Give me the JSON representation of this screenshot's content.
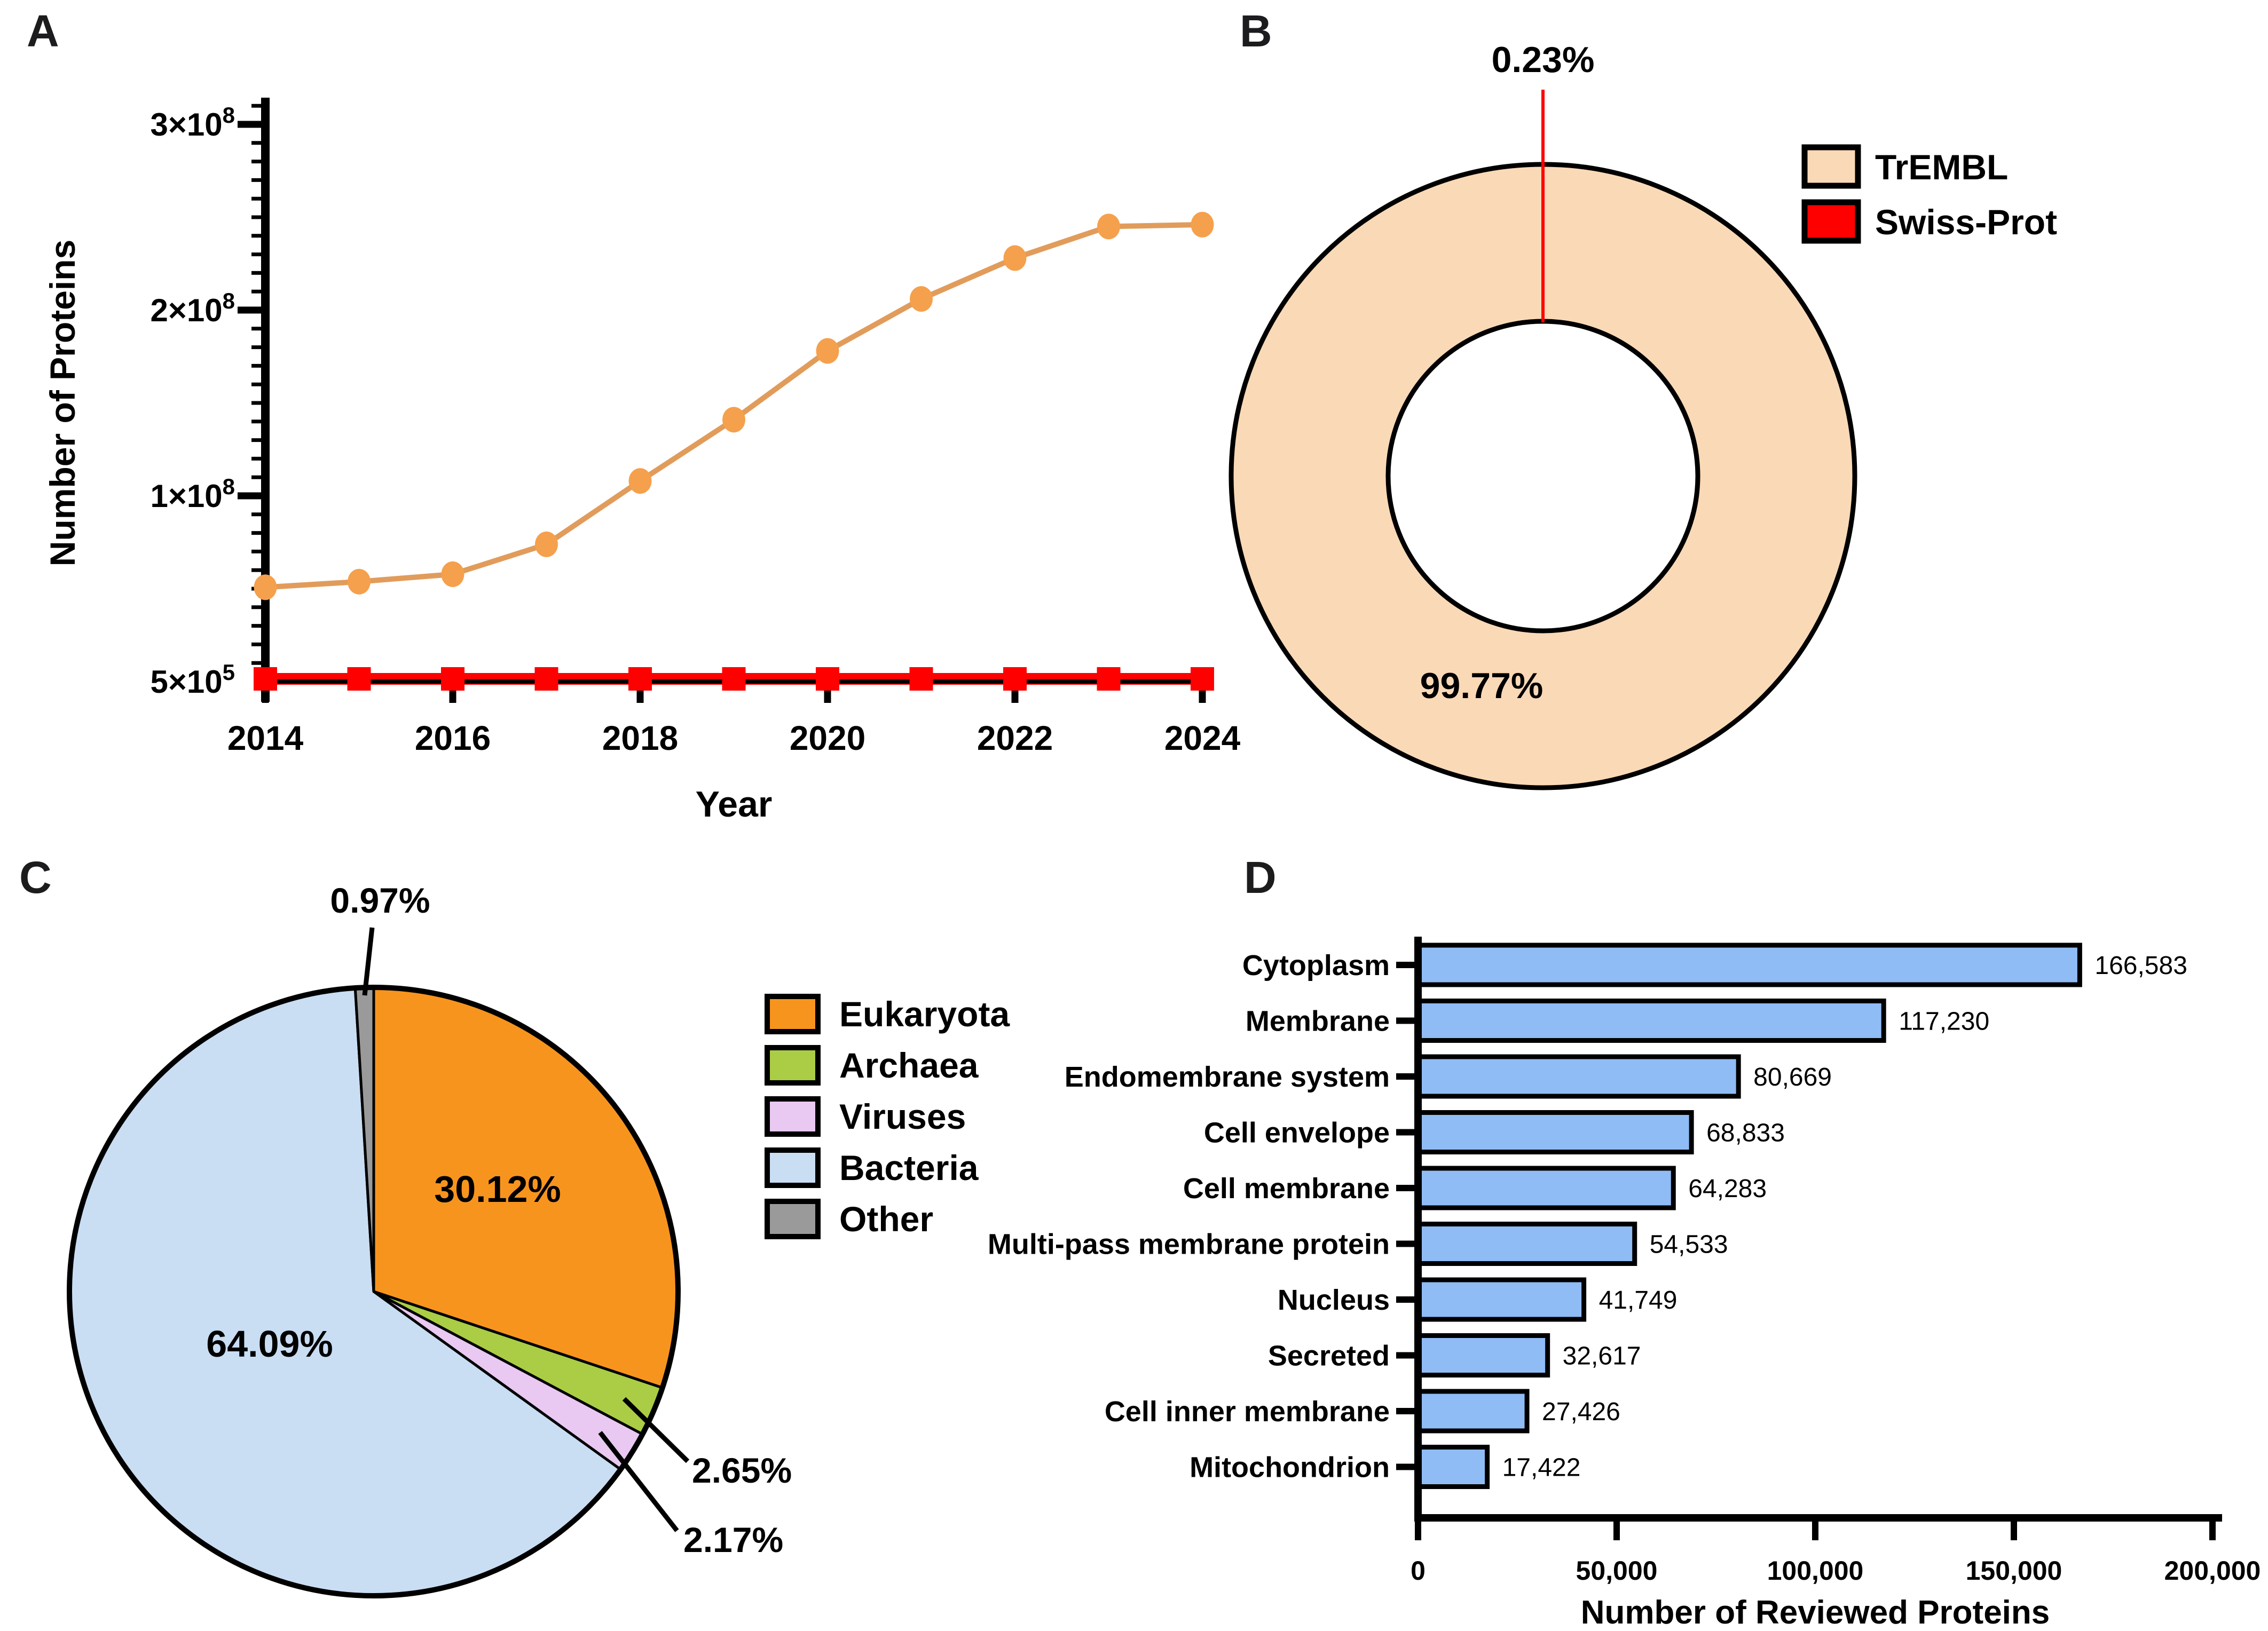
{
  "figure": {
    "panel_letters": [
      "A",
      "B",
      "C",
      "D"
    ]
  },
  "colors": {
    "trembl_line": "#E19C5B",
    "trembl_marker": "#F5A04C",
    "swissprot_marker": "#FF0000",
    "swissprot_line": "#FF0000",
    "axis": "#000000",
    "donut_fill": "#FAD9B7",
    "donut_red": "#FF0000",
    "bar_fill": "#8FBCF5",
    "text": "#000000"
  },
  "chart_data": [
    {
      "id": "A",
      "type": "line",
      "xlabel": "Year",
      "ylabel": "Number of Proteins",
      "x": [
        2014,
        2015,
        2016,
        2017,
        2018,
        2019,
        2020,
        2021,
        2022,
        2023,
        2024
      ],
      "xticks_labeled": [
        2014,
        2016,
        2018,
        2020,
        2022,
        2024
      ],
      "yticks": [
        {
          "value": 500000,
          "base": "5×10",
          "exp": "5"
        },
        {
          "value": 100000000,
          "base": "1×10",
          "exp": "8"
        },
        {
          "value": 200000000,
          "base": "2×10",
          "exp": "8"
        },
        {
          "value": 300000000,
          "base": "3×10",
          "exp": "8"
        }
      ],
      "series": [
        {
          "name": "TrEMBL",
          "marker": "circle",
          "values": [
            51000000,
            54000000,
            58000000,
            74000000,
            108000000,
            141000000,
            178000000,
            206000000,
            228000000,
            245000000,
            246000000
          ]
        },
        {
          "name": "Swiss-Prot",
          "marker": "square",
          "values": [
            550000,
            550000,
            550000,
            550000,
            550000,
            550000,
            550000,
            550000,
            550000,
            550000,
            550000
          ]
        }
      ]
    },
    {
      "id": "B",
      "type": "pie",
      "donut": true,
      "slices": [
        {
          "label": "TrEMBL",
          "pct": 99.77,
          "pct_label": "99.77%",
          "color": "#FAD9B7"
        },
        {
          "label": "Swiss-Prot",
          "pct": 0.23,
          "pct_label": "0.23%",
          "color": "#FF0000"
        }
      ],
      "legend": [
        "TrEMBL",
        "Swiss-Prot"
      ],
      "legend_position": "right"
    },
    {
      "id": "C",
      "type": "pie",
      "donut": false,
      "slices": [
        {
          "label": "Eukaryota",
          "pct": 30.12,
          "pct_label": "30.12%",
          "color": "#F7941E"
        },
        {
          "label": "Archaea",
          "pct": 2.65,
          "pct_label": "2.65%",
          "color": "#AACD45"
        },
        {
          "label": "Viruses",
          "pct": 2.17,
          "pct_label": "2.17%",
          "color": "#E9C8F1"
        },
        {
          "label": "Bacteria",
          "pct": 64.09,
          "pct_label": "64.09%",
          "color": "#C9DDF3"
        },
        {
          "label": "Other",
          "pct": 0.97,
          "pct_label": "0.97%",
          "color": "#9A9A9A"
        }
      ],
      "legend": [
        "Eukaryota",
        "Archaea",
        "Viruses",
        "Bacteria",
        "Other"
      ],
      "legend_position": "right"
    },
    {
      "id": "D",
      "type": "bar",
      "orientation": "horizontal",
      "xlabel": "Number of Reviewed Proteins",
      "categories": [
        "Cytoplasm",
        "Membrane",
        "Endomembrane system",
        "Cell envelope",
        "Cell membrane",
        "Multi-pass membrane protein",
        "Nucleus",
        "Secreted",
        "Cell inner membrane",
        "Mitochondrion"
      ],
      "values": [
        166583,
        117230,
        80669,
        68833,
        64283,
        54533,
        41749,
        32617,
        27426,
        17422
      ],
      "value_labels": [
        "166,583",
        "117,230",
        "80,669",
        "68,833",
        "64,283",
        "54,533",
        "41,749",
        "32,617",
        "27,426",
        "17,422"
      ],
      "xticks": [
        0,
        50000,
        100000,
        150000,
        200000
      ],
      "xtick_labels": [
        "0",
        "50,000",
        "100,000",
        "150,000",
        "200,000"
      ],
      "xlim": [
        0,
        200000
      ],
      "grid": false
    }
  ]
}
